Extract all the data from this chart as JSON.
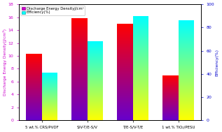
{
  "categories": [
    "5 wt.% CRS/PVDF",
    "S/V-T/E-S/V",
    "T/E-S/V-T/E",
    "1 wt.% TiO₂/PESU"
  ],
  "discharge_energy": [
    10.3,
    15.9,
    15.0,
    7.0
  ],
  "efficiency": [
    41,
    68,
    90,
    86
  ],
  "ylabel_left": "Discharge Energy Density(J/cm³)",
  "ylabel_right": "Efficiency(%)",
  "ylim_left": [
    0,
    18
  ],
  "ylim_right": [
    0,
    100
  ],
  "yticks_left": [
    0,
    2,
    4,
    6,
    8,
    10,
    12,
    14,
    16,
    18
  ],
  "yticks_right": [
    0,
    20,
    40,
    60,
    80,
    100
  ],
  "legend_energy": "Discharge Energy DensityJ/cm³",
  "legend_efficiency": "Efficiency(%)",
  "bar_width": 0.35,
  "left_axis_color": "#cc00cc",
  "right_axis_color": "#0000cc",
  "background_color": "#ffffff",
  "energy_color_bottom": "#6600cc",
  "energy_color_top": "#ff0000",
  "eff_color_bottom": "#ffff00",
  "eff_color_top": "#00ffff"
}
